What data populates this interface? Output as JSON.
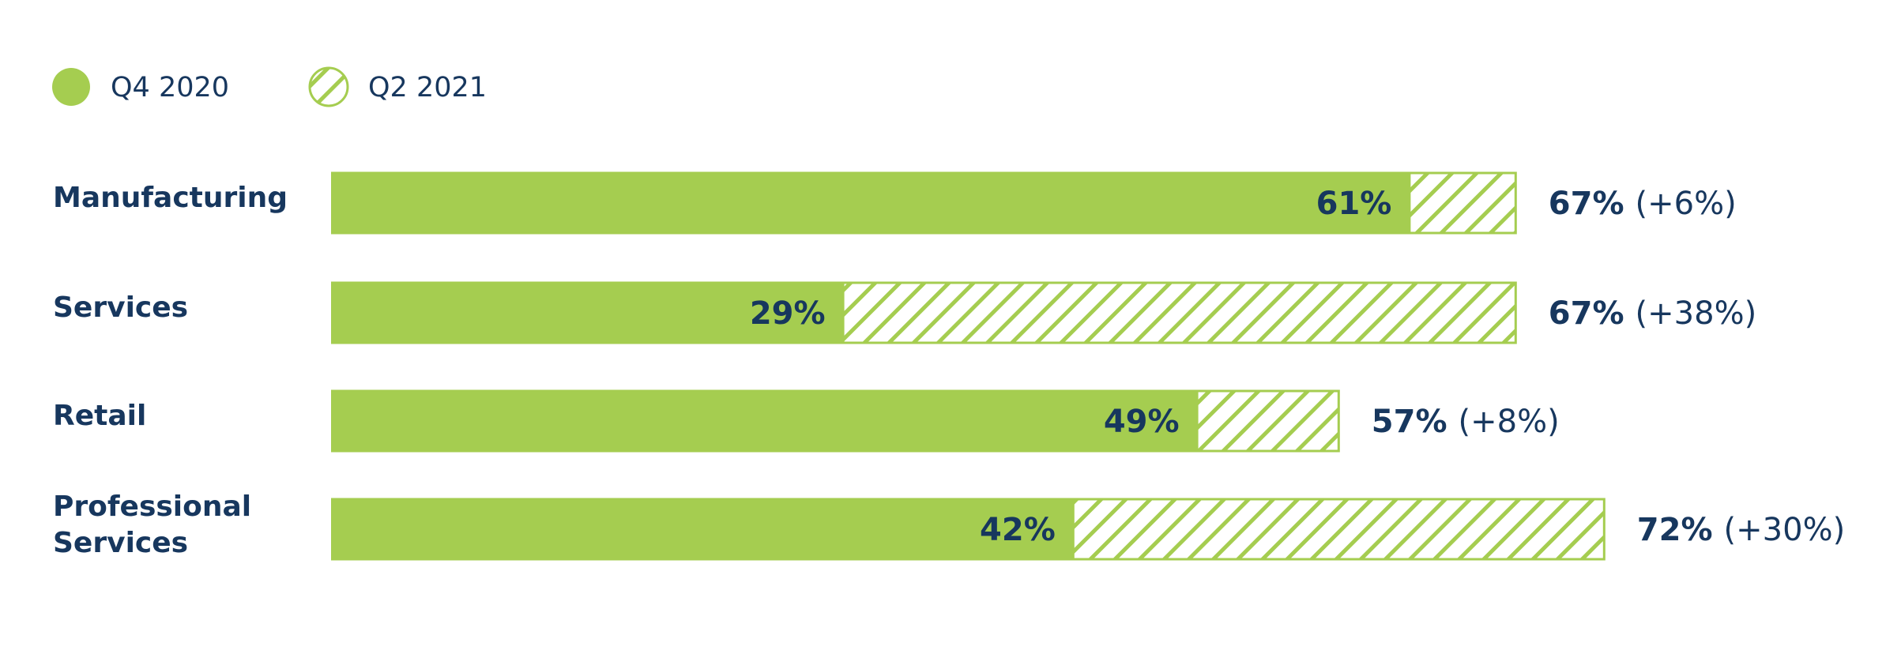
{
  "chart_data": {
    "type": "bar",
    "orientation": "horizontal",
    "categories": [
      "Manufacturing",
      "Services",
      "Retail",
      "Professional Services"
    ],
    "series": [
      {
        "name": "Q4 2020",
        "color": "#a5cd50",
        "fill": "solid",
        "values": [
          61,
          29,
          49,
          42
        ],
        "value_labels": [
          "61%",
          "29%",
          "49%",
          "42%"
        ]
      },
      {
        "name": "Q2 2021",
        "color": "#a5cd50",
        "fill": "hatched",
        "values": [
          67,
          67,
          57,
          72
        ],
        "value_labels": [
          "67%",
          "67%",
          "57%",
          "72%"
        ]
      }
    ],
    "changes": {
      "values": [
        6,
        38,
        8,
        30
      ],
      "value_labels": [
        "(+6%)",
        "(+38%)",
        "(+8%)",
        "(+30%)"
      ]
    },
    "legend": "top-left"
  }
}
